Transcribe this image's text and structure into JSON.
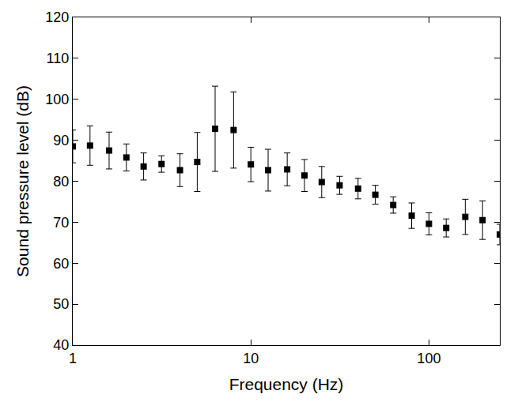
{
  "chart_data": {
    "type": "scatter",
    "x_label": "Frequency (Hz)",
    "y_label": "Sound pressure level (dB)",
    "x": [
      1,
      1.25,
      1.6,
      2,
      2.5,
      3.15,
      4,
      5,
      6.3,
      8,
      10,
      12.5,
      16,
      20,
      25,
      31.5,
      40,
      50,
      63,
      80,
      100,
      125,
      160,
      200,
      250
    ],
    "values": [
      88.5,
      88.7,
      87.5,
      85.8,
      83.6,
      84.2,
      82.7,
      84.7,
      92.8,
      92.5,
      84.1,
      82.7,
      82.9,
      81.4,
      79.8,
      79.0,
      78.2,
      76.7,
      74.2,
      71.6,
      69.6,
      68.6,
      71.3,
      70.5,
      67.0
    ],
    "errors": [
      4.0,
      4.8,
      4.5,
      3.3,
      3.3,
      2.0,
      4.0,
      7.2,
      10.4,
      9.3,
      4.2,
      5.1,
      4.0,
      3.9,
      3.8,
      2.2,
      2.5,
      2.3,
      2.0,
      3.1,
      2.7,
      2.2,
      4.3,
      4.7,
      2.5
    ],
    "color": "#000000",
    "marker": "square",
    "log": "x",
    "grid": false,
    "xlim": [
      1,
      250
    ],
    "xticks": [
      1,
      10,
      100
    ],
    "ylim": [
      40,
      120
    ],
    "yticks": [
      40,
      50,
      60,
      70,
      80,
      90,
      100,
      110,
      120
    ]
  }
}
